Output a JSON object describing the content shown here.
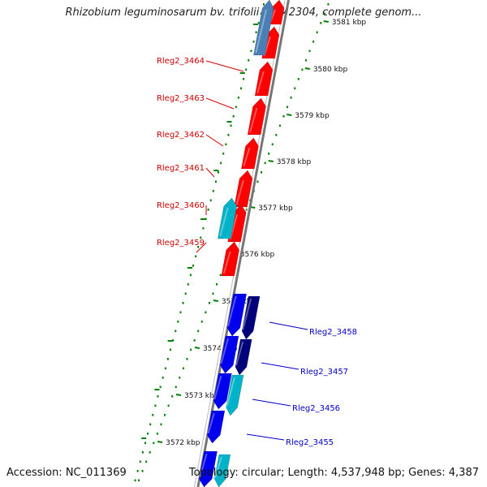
{
  "title": "Rhizobium leguminosarum bv. trifolii WSM2304, complete genom...",
  "footer": {
    "accession": "Accession: NC_011369",
    "topology": "Topology: circular; Length: 4,537,948 bp; Genes: 4,387"
  },
  "colors": {
    "forward_gene": "#ff0000",
    "forward_other": "#00b3c8",
    "forward_other_light": "#4a7fb5",
    "reverse_gene": "#0000ee",
    "reverse_gene_dark": "#00007a",
    "reverse_other": "#00b3c8",
    "backbone": "#777777",
    "ticks": "#008000",
    "forward_label": "#cc0000",
    "reverse_label": "#0000cc"
  },
  "ticks": [
    "3581 kbp",
    "3580 kbp",
    "3579 kbp",
    "3578 kbp",
    "3577 kbp",
    "3576 kbp",
    "3575 kbp",
    "3574 kbp",
    "3573 kbp",
    "3572 kbp"
  ],
  "forward_labels": [
    "Rleg2_3464",
    "Rleg2_3463",
    "Rleg2_3462",
    "Rleg2_3461",
    "Rleg2_3460",
    "Rleg2_3459"
  ],
  "reverse_labels": [
    "Rleg2_3458",
    "Rleg2_3457",
    "Rleg2_3456",
    "Rleg2_3455"
  ]
}
